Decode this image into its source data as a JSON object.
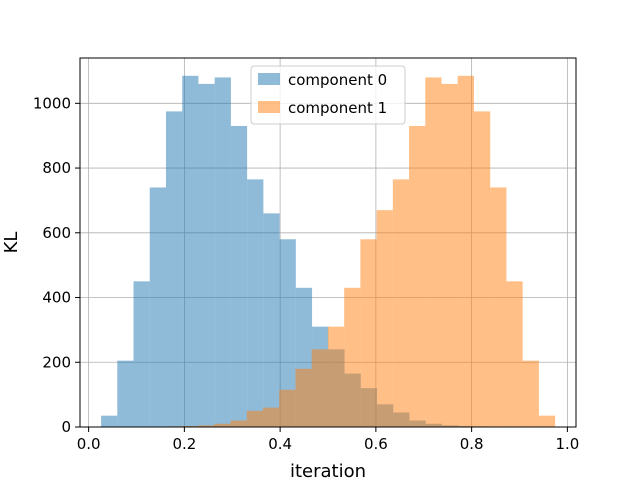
{
  "chart_data": {
    "type": "bar",
    "title": "",
    "xlabel": "iteration",
    "ylabel": "KL",
    "xlim": [
      -0.018,
      1.018
    ],
    "ylim": [
      0,
      1140
    ],
    "xticks": [
      0.0,
      0.2,
      0.4,
      0.6,
      0.8,
      1.0
    ],
    "xtick_labels": [
      "0.0",
      "0.2",
      "0.4",
      "0.6",
      "0.8",
      "1.0"
    ],
    "yticks": [
      0,
      200,
      400,
      600,
      800,
      1000
    ],
    "ytick_labels": [
      "0",
      "200",
      "400",
      "600",
      "800",
      "1000"
    ],
    "grid": true,
    "legend_position": "top-center",
    "series": [
      {
        "name": "component 0",
        "color": "#1f77b4",
        "opacity": 0.5,
        "bin_edges": [
          0.026,
          0.0599,
          0.0938,
          0.1277,
          0.1616,
          0.1955,
          0.2294,
          0.2633,
          0.2972,
          0.3311,
          0.365,
          0.3989,
          0.4328,
          0.4667,
          0.5006,
          0.5345,
          0.5684,
          0.6023,
          0.6362,
          0.6701,
          0.704,
          0.7379,
          0.7718,
          0.8057,
          0.8396,
          0.8735,
          0.9074
        ],
        "counts": [
          35,
          205,
          450,
          740,
          975,
          1085,
          1060,
          1080,
          930,
          765,
          660,
          580,
          430,
          310,
          240,
          165,
          120,
          70,
          45,
          20,
          10,
          5,
          3,
          2,
          1,
          1
        ]
      },
      {
        "name": "component 1",
        "color": "#ff7f0e",
        "opacity": 0.5,
        "bin_edges": [
          0.093,
          0.1269,
          0.1608,
          0.1947,
          0.2286,
          0.2625,
          0.2964,
          0.3303,
          0.3642,
          0.3981,
          0.432,
          0.4659,
          0.4998,
          0.5337,
          0.5676,
          0.6015,
          0.6354,
          0.6693,
          0.7032,
          0.7371,
          0.771,
          0.8049,
          0.8388,
          0.8727,
          0.9066,
          0.9405,
          0.9744
        ],
        "counts": [
          1,
          1,
          2,
          3,
          5,
          10,
          20,
          50,
          60,
          115,
          180,
          240,
          310,
          430,
          580,
          670,
          765,
          930,
          1080,
          1060,
          1085,
          975,
          740,
          450,
          205,
          35
        ]
      }
    ]
  }
}
